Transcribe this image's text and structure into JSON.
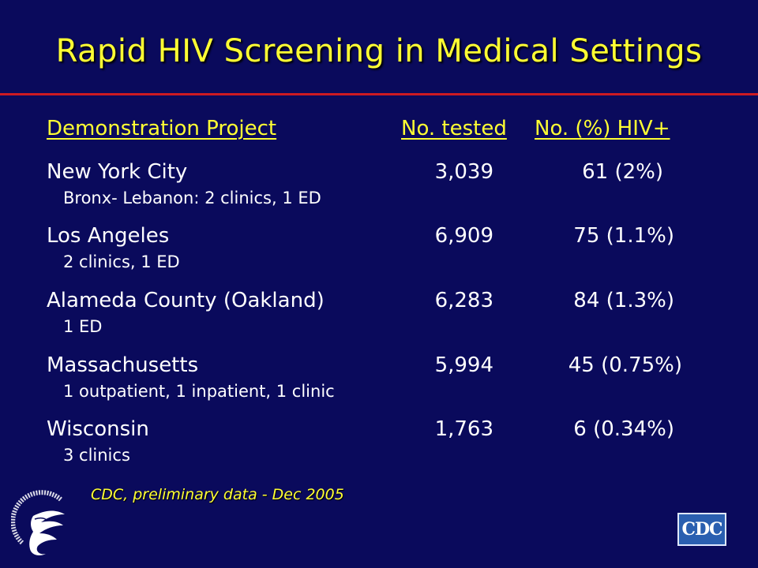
{
  "slide": {
    "title": "Rapid HIV Screening in Medical Settings"
  },
  "table": {
    "headers": {
      "project": "Demonstration Project",
      "tested": "No. tested",
      "hiv": "No. (%) HIV+"
    },
    "rows": [
      {
        "site": "New York City",
        "detail": "Bronx- Lebanon: 2 clinics, 1 ED",
        "tested": "3,039",
        "hiv": "61 (2%)"
      },
      {
        "site": "Los Angeles",
        "detail": "2 clinics, 1 ED",
        "tested": "6,909",
        "hiv": "75 (1.1%)"
      },
      {
        "site": "Alameda County (Oakland)",
        "detail": "1 ED",
        "tested": "6,283",
        "hiv": "84 (1.3%)"
      },
      {
        "site": "Massachusetts",
        "detail": "1 outpatient, 1 inpatient, 1 clinic",
        "tested": "5,994",
        "hiv": "45 (0.75%)"
      },
      {
        "site": "Wisconsin",
        "detail": "3 clinics",
        "tested": "1,763",
        "hiv": "6 (0.34%)"
      }
    ]
  },
  "footer": {
    "source": "CDC, preliminary data - Dec 2005",
    "cdc_logo_text": "CDC",
    "hhs_logo_icon": "hhs-eagle-seal-icon"
  },
  "colors": {
    "background": "#0a0a5c",
    "accent_yellow": "#ffff33",
    "rule_red": "#cc1a22",
    "text_white": "#ffffff"
  }
}
